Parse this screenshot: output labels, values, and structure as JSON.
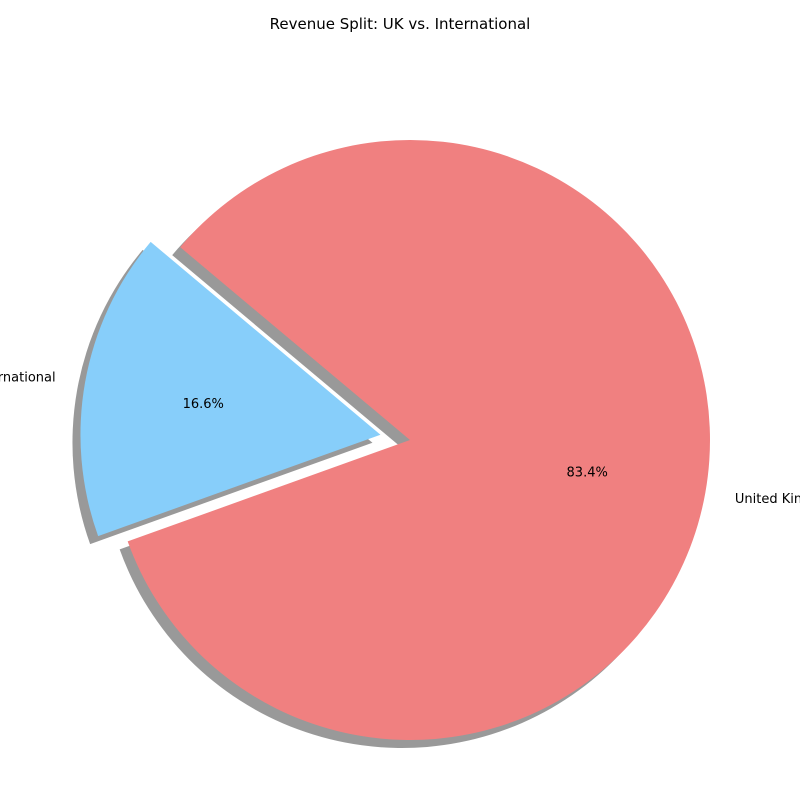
{
  "chart_data": {
    "type": "pie",
    "title": "Revenue Split: UK vs. International",
    "slices": [
      {
        "label": "International",
        "value": 16.6,
        "pct_label": "16.6%",
        "color": "#87CEFA",
        "exploded": true
      },
      {
        "label": "United Kingdom",
        "value": 83.4,
        "pct_label": "83.4%",
        "color": "#F08080",
        "exploded": false
      }
    ],
    "shadow": true,
    "start_angle_deg": 140,
    "direction": "counterclockwise",
    "legend": "none"
  }
}
